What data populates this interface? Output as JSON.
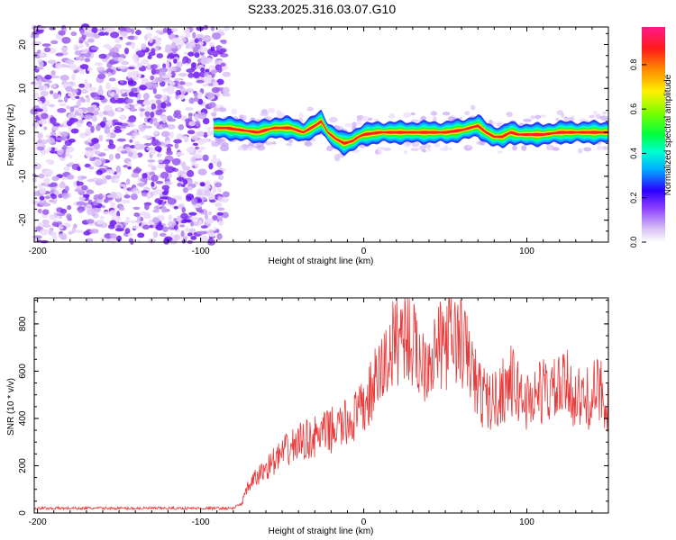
{
  "title": "S233.2025.316.03.07.G10",
  "chart_data": [
    {
      "type": "heatmap",
      "xlabel": "Height of straight line (km)",
      "ylabel": "Frequency (Hz)",
      "xlim": [
        -202,
        150
      ],
      "ylim": [
        -25,
        24
      ],
      "x_ticks": [
        -200,
        -100,
        0,
        100
      ],
      "x_tick_labels": [
        "-200",
        "-100",
        "0",
        "100"
      ],
      "y_ticks": [
        -20,
        -10,
        0,
        10,
        20
      ],
      "y_tick_labels": [
        "-20",
        "-10",
        "0",
        "10",
        "20"
      ],
      "noise_region_x": [
        -202,
        -84
      ],
      "signal_track": {
        "x": [
          -92,
          -84,
          -75,
          -65,
          -55,
          -45,
          -37,
          -30,
          -26,
          -22,
          -17,
          -12,
          -7,
          -3,
          0,
          10,
          20,
          30,
          40,
          50,
          60,
          65,
          70,
          75,
          80,
          85,
          90,
          95,
          100,
          110,
          120,
          130,
          140,
          150
        ],
        "y": [
          1,
          1,
          0.5,
          0,
          1,
          1,
          0,
          1.5,
          2.5,
          0,
          -1.5,
          -2.5,
          -2,
          -1,
          -0.5,
          0,
          0,
          0,
          0,
          0,
          0.5,
          1,
          1.5,
          0,
          -1,
          -1,
          0,
          -0.5,
          -0.5,
          -0.5,
          0,
          0,
          0,
          0
        ]
      },
      "colorbar": {
        "label": "Normalized spectral amplitude",
        "range": [
          0,
          0.97
        ],
        "ticks": [
          0.0,
          0.2,
          0.4,
          0.6,
          0.8
        ],
        "tick_labels": [
          "0.0",
          "0.2",
          "0.4",
          "0.6",
          "0.8"
        ]
      }
    },
    {
      "type": "line",
      "xlabel": "Height of straight line (km)",
      "ylabel": "SNR (10 * v/v)",
      "xlim": [
        -202,
        150
      ],
      "ylim": [
        0,
        910
      ],
      "x_ticks": [
        -200,
        -100,
        0,
        100
      ],
      "x_tick_labels": [
        "-200",
        "-100",
        "0",
        "100"
      ],
      "y_ticks": [
        0,
        200,
        400,
        600,
        800
      ],
      "y_tick_labels": [
        "0",
        "200",
        "400",
        "600",
        "800"
      ],
      "color": "#e83a3a",
      "series_envelope": {
        "x": [
          -202,
          -100,
          -80,
          -75,
          -70,
          -60,
          -50,
          -40,
          -30,
          -20,
          -10,
          0,
          5,
          10,
          15,
          20,
          25,
          30,
          35,
          40,
          50,
          55,
          60,
          65,
          70,
          75,
          80,
          85,
          90,
          95,
          100,
          105,
          110,
          115,
          120,
          125,
          130,
          135,
          140,
          145,
          150
        ],
        "y": [
          20,
          20,
          20,
          40,
          120,
          190,
          250,
          300,
          320,
          350,
          380,
          440,
          520,
          590,
          660,
          740,
          780,
          710,
          640,
          660,
          720,
          740,
          720,
          640,
          520,
          480,
          470,
          520,
          560,
          510,
          470,
          500,
          520,
          510,
          520,
          540,
          490,
          470,
          500,
          520,
          470
        ]
      }
    }
  ]
}
